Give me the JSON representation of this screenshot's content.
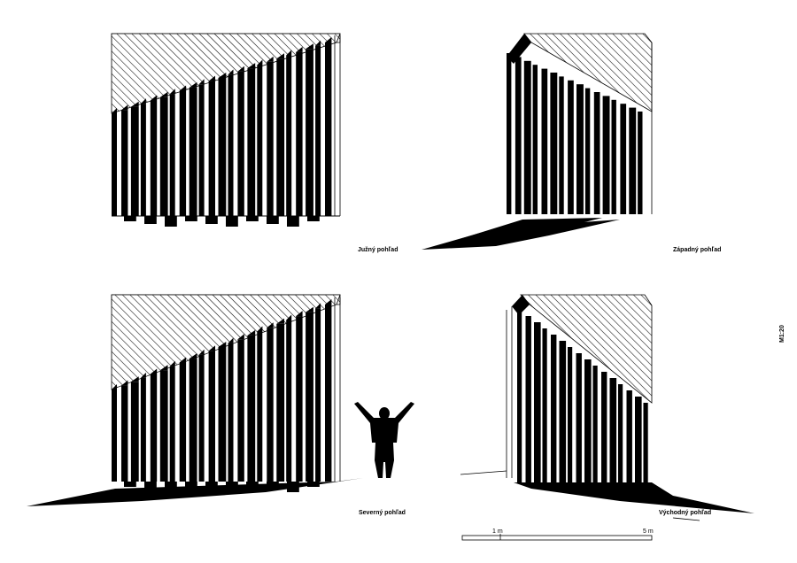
{
  "elevations": {
    "south": {
      "label": "Južný pohľad"
    },
    "west": {
      "label": "Západný pohľad"
    },
    "north": {
      "label": "Severný pohľad"
    },
    "east": {
      "label": "Východný pohľad"
    }
  },
  "scale": {
    "ratio": "M1:20",
    "tick_1": "1 m",
    "tick_5": "5 m"
  },
  "colors": {
    "ink": "#000000",
    "paper": "#ffffff"
  }
}
